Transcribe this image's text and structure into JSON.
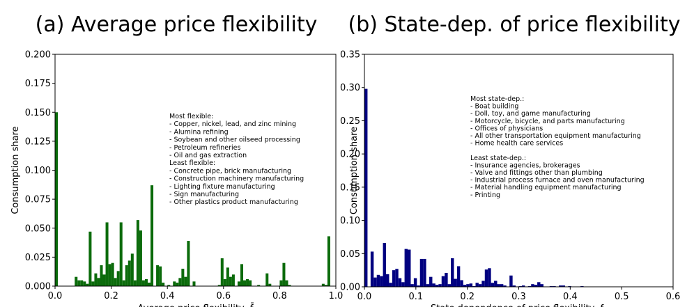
{
  "chart_data": [
    {
      "type": "bar",
      "title": "(a) Average price flexibility",
      "xlabel": "Average price flexibility, f̄",
      "ylabel": "Consumption share",
      "xlim": [
        0,
        1
      ],
      "ylim": [
        0,
        0.2
      ],
      "xticks": [
        "0.0",
        "0.2",
        "0.4",
        "0.6",
        "0.8",
        "1.0"
      ],
      "yticks": [
        "0.000",
        "0.025",
        "0.050",
        "0.075",
        "0.100",
        "0.125",
        "0.150",
        "0.175",
        "0.200"
      ],
      "color": "#0b6b0b",
      "bin_width": 0.01,
      "x": [
        0.0,
        0.07,
        0.08,
        0.09,
        0.1,
        0.11,
        0.12,
        0.13,
        0.14,
        0.15,
        0.16,
        0.17,
        0.18,
        0.19,
        0.2,
        0.21,
        0.22,
        0.23,
        0.24,
        0.25,
        0.26,
        0.27,
        0.28,
        0.29,
        0.3,
        0.31,
        0.32,
        0.33,
        0.34,
        0.36,
        0.37,
        0.38,
        0.4,
        0.42,
        0.43,
        0.44,
        0.45,
        0.46,
        0.47,
        0.49,
        0.58,
        0.59,
        0.6,
        0.61,
        0.62,
        0.63,
        0.65,
        0.66,
        0.67,
        0.68,
        0.69,
        0.72,
        0.75,
        0.76,
        0.8,
        0.81,
        0.82,
        0.83,
        0.95,
        0.96,
        0.97
      ],
      "values": [
        0.15,
        0.008,
        0.005,
        0.005,
        0.004,
        0.002,
        0.047,
        0.004,
        0.011,
        0.007,
        0.018,
        0.01,
        0.055,
        0.019,
        0.02,
        0.007,
        0.013,
        0.055,
        0.005,
        0.018,
        0.022,
        0.028,
        0.005,
        0.057,
        0.048,
        0.005,
        0.006,
        0.003,
        0.087,
        0.018,
        0.017,
        0.003,
        0.001,
        0.004,
        0.003,
        0.007,
        0.015,
        0.008,
        0.039,
        0.004,
        0.001,
        0.024,
        0.006,
        0.016,
        0.008,
        0.01,
        0.004,
        0.019,
        0.005,
        0.006,
        0.005,
        0.001,
        0.011,
        0.002,
        0.005,
        0.02,
        0.005,
        0.001,
        0.002,
        0.001,
        0.043
      ],
      "annotation": [
        "Most flexible:",
        "- Copper, nickel, lead, and zinc mining",
        "- Alumina refining",
        "- Soybean and other oilseed processing",
        "- Petroleum refineries",
        "- Oil and gas extraction",
        "Least flexible:",
        "- Concrete pipe, brick manufacturing",
        "- Construction machinery manufacturing",
        "- Lighting fixture manufacturing",
        "- Sign manufacturing",
        "- Other plastics product manufacturing"
      ]
    },
    {
      "type": "bar",
      "title": "(b) State-dep. of price flexibility",
      "xlabel": "State dependence of price flexibility, fₛ",
      "ylabel": "Consumption share",
      "xlim": [
        0,
        0.6
      ],
      "ylim": [
        0,
        0.35
      ],
      "xticks": [
        "0.0",
        "0.1",
        "0.2",
        "0.3",
        "0.4",
        "0.5",
        "0.6"
      ],
      "yticks": [
        "0.00",
        "0.05",
        "0.10",
        "0.15",
        "0.20",
        "0.25",
        "0.30",
        "0.35"
      ],
      "color": "#000080",
      "bin_width": 0.006,
      "x": [
        0.0,
        0.012,
        0.018,
        0.024,
        0.03,
        0.036,
        0.042,
        0.048,
        0.054,
        0.06,
        0.066,
        0.072,
        0.078,
        0.084,
        0.09,
        0.096,
        0.102,
        0.108,
        0.114,
        0.12,
        0.126,
        0.132,
        0.138,
        0.144,
        0.15,
        0.156,
        0.162,
        0.168,
        0.174,
        0.18,
        0.186,
        0.192,
        0.198,
        0.204,
        0.21,
        0.216,
        0.222,
        0.228,
        0.234,
        0.24,
        0.246,
        0.252,
        0.258,
        0.264,
        0.27,
        0.282,
        0.288,
        0.3,
        0.306,
        0.318,
        0.324,
        0.33,
        0.336,
        0.342,
        0.36,
        0.366,
        0.378,
        0.384,
        0.396,
        0.42
      ],
      "values": [
        0.298,
        0.053,
        0.014,
        0.018,
        0.016,
        0.066,
        0.019,
        0.006,
        0.025,
        0.027,
        0.013,
        0.007,
        0.057,
        0.056,
        0.004,
        0.013,
        0.002,
        0.042,
        0.042,
        0.004,
        0.015,
        0.005,
        0.003,
        0.004,
        0.016,
        0.021,
        0.004,
        0.043,
        0.012,
        0.031,
        0.01,
        0.003,
        0.004,
        0.005,
        0.001,
        0.006,
        0.004,
        0.009,
        0.026,
        0.028,
        0.006,
        0.009,
        0.004,
        0.004,
        0.002,
        0.017,
        0.002,
        0.001,
        0.002,
        0.001,
        0.004,
        0.003,
        0.007,
        0.004,
        0.001,
        0.001,
        0.002,
        0.002,
        0.001,
        0.001
      ],
      "annotation": [
        "Most state-dep.:",
        "- Boat building",
        "- Doll, toy, and game manufacturing",
        "- Motorcycle, bicycle, and parts manufacturing",
        "- Offices of physicians",
        "- All other transportation equipment manufacturing",
        "- Home health care services",
        "",
        "Least state-dep.:",
        "- Insurance agencies, brokerages",
        "- Valve and fittings other than plumbing",
        "- Industrial process furnace and oven manufacturing",
        "- Material handling equipment manufacturing",
        "- Printing"
      ]
    }
  ]
}
